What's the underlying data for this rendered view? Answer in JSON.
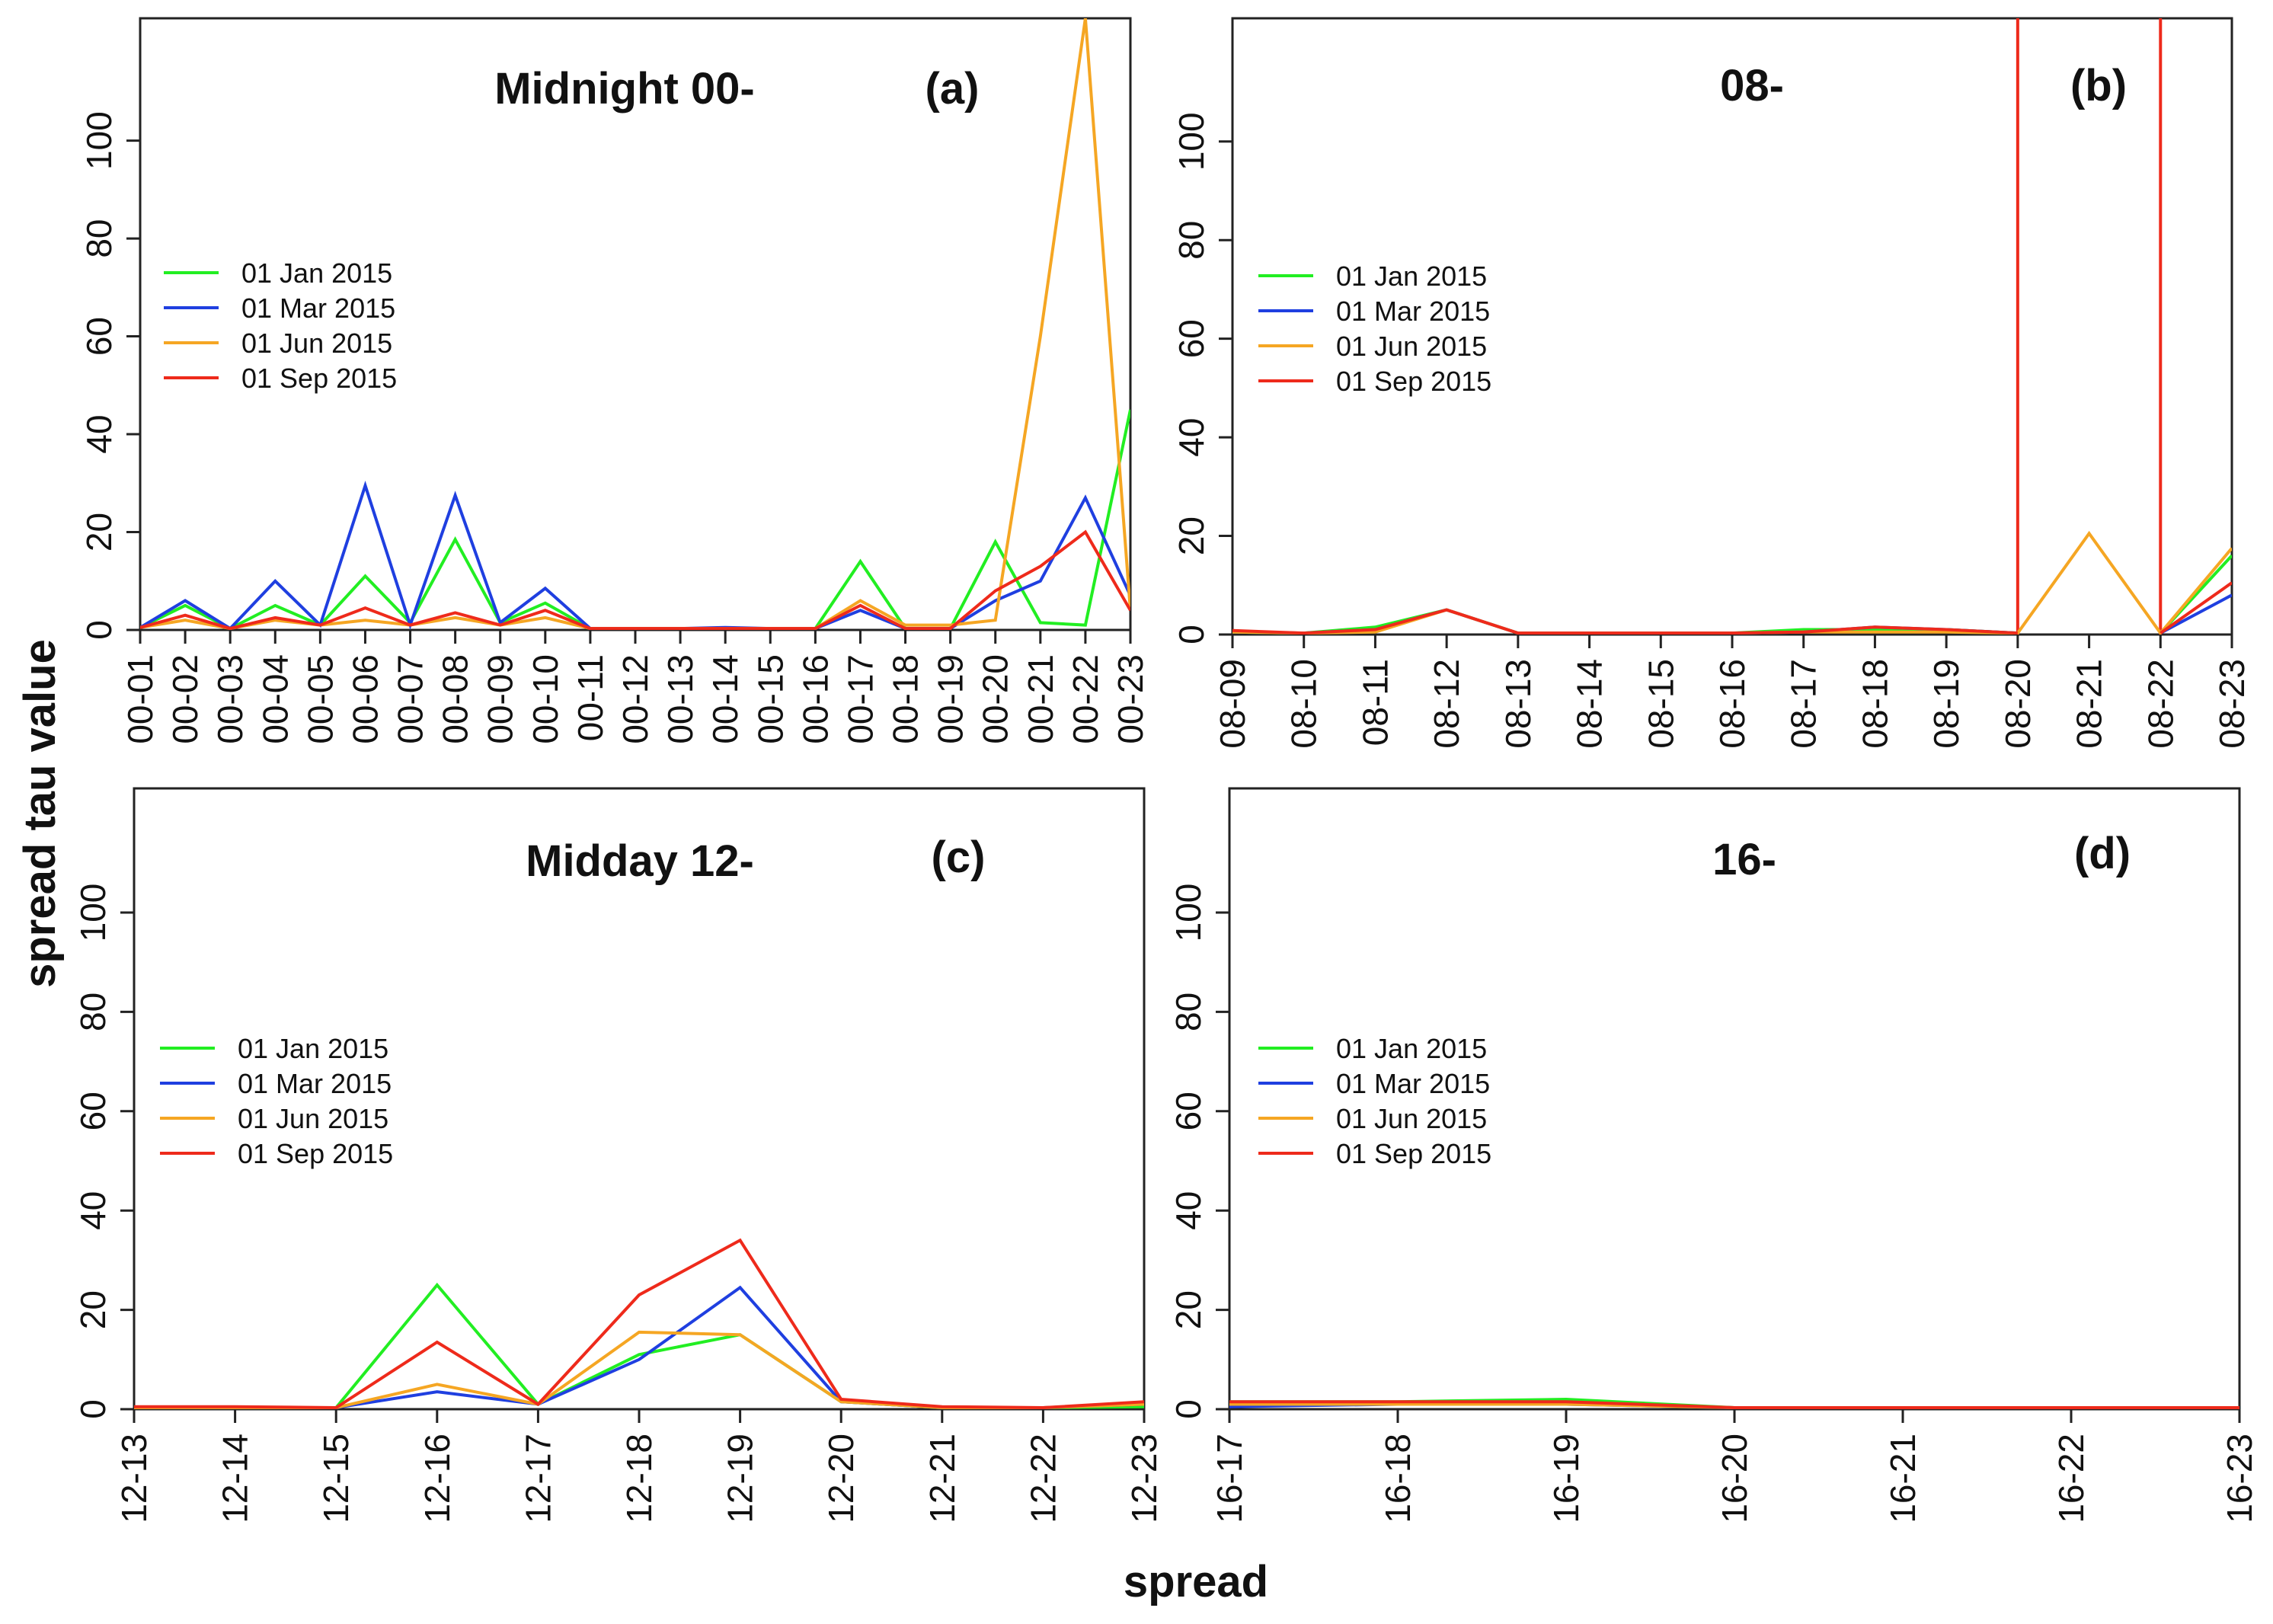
{
  "figure": {
    "ylabel": "spread tau value",
    "xlabel": "spread"
  },
  "legend": [
    {
      "label": "01 Jan 2015",
      "color": "#22ee22"
    },
    {
      "label": "01 Mar 2015",
      "color": "#1f3fe0"
    },
    {
      "label": "01 Jun 2015",
      "color": "#f5a623"
    },
    {
      "label": "01 Sep 2015",
      "color": "#ee2a1b"
    }
  ],
  "chart_data": [
    {
      "type": "line",
      "panel_label": "(a)",
      "title": "Midnight 00-",
      "categories": [
        "00-01",
        "00-02",
        "00-03",
        "00-04",
        "00-05",
        "00-06",
        "00-07",
        "00-08",
        "00-09",
        "00-10",
        "00-11",
        "00-12",
        "00-13",
        "00-14",
        "00-15",
        "00-16",
        "00-17",
        "00-18",
        "00-19",
        "00-20",
        "00-21",
        "00-22",
        "00-23"
      ],
      "ylim": [
        0,
        125
      ],
      "yticks": [
        0,
        20,
        40,
        60,
        80,
        100
      ],
      "vlines": [],
      "series": [
        {
          "name": "01 Jan 2015",
          "color": "#22ee22",
          "values": [
            0.5,
            5,
            0.3,
            5,
            1,
            11,
            1.5,
            18.5,
            1.5,
            5.5,
            0.3,
            0.3,
            0.3,
            0.3,
            0.3,
            0.3,
            14,
            0.3,
            0.3,
            18,
            1.5,
            1,
            45
          ]
        },
        {
          "name": "01 Mar 2015",
          "color": "#1f3fe0",
          "values": [
            0.5,
            6,
            0.3,
            10,
            1,
            29.5,
            1,
            27.5,
            1.5,
            8.5,
            0.3,
            0.3,
            0.3,
            0.5,
            0.3,
            0.3,
            4,
            0.3,
            0.3,
            6,
            10,
            27,
            7
          ]
        },
        {
          "name": "01 Jun 2015",
          "color": "#f5a623",
          "values": [
            0.5,
            2,
            0.3,
            2,
            1,
            2,
            1,
            2.5,
            1,
            2.5,
            0.3,
            0.3,
            0.3,
            0.3,
            0.3,
            0.3,
            6,
            1,
            1,
            2,
            60,
            125,
            4
          ]
        },
        {
          "name": "01 Sep 2015",
          "color": "#ee2a1b",
          "values": [
            0.5,
            3,
            0.3,
            2.5,
            1,
            4.5,
            1,
            3.5,
            1,
            4,
            0.3,
            0.3,
            0.3,
            0.3,
            0.3,
            0.3,
            5,
            0.3,
            0.3,
            8,
            13,
            20,
            4
          ]
        }
      ]
    },
    {
      "type": "line",
      "panel_label": "(b)",
      "title": "08-",
      "categories": [
        "08-09",
        "08-10",
        "08-11",
        "08-12",
        "08-13",
        "08-14",
        "08-15",
        "08-16",
        "08-17",
        "08-18",
        "08-19",
        "08-20",
        "08-21",
        "08-22",
        "08-23"
      ],
      "ylim": [
        0,
        125
      ],
      "yticks": [
        0,
        20,
        40,
        60,
        80,
        100
      ],
      "vlines": [
        {
          "at": "08-20",
          "color": "#ee2a1b"
        },
        {
          "at": "08-22",
          "color": "#ee2a1b"
        }
      ],
      "series": [
        {
          "name": "01 Jan 2015",
          "color": "#22ee22",
          "values": [
            0.5,
            0.3,
            1.5,
            5,
            0.3,
            0.3,
            0.3,
            0.3,
            1,
            1,
            1,
            0.3,
            null,
            0.3,
            16
          ]
        },
        {
          "name": "01 Mar 2015",
          "color": "#1f3fe0",
          "values": [
            0.5,
            0.3,
            1,
            5,
            0.3,
            0.3,
            0.3,
            0.3,
            0.5,
            1.5,
            1,
            0.3,
            null,
            0.3,
            8
          ]
        },
        {
          "name": "01 Jun 2015",
          "color": "#f5a623",
          "values": [
            0.5,
            0.3,
            0.5,
            5,
            0.3,
            0.3,
            0.3,
            0.3,
            0.5,
            0.5,
            0.5,
            0.3,
            20.5,
            0.3,
            17.5
          ]
        },
        {
          "name": "01 Sep 2015",
          "color": "#ee2a1b",
          "values": [
            0.8,
            0.3,
            1,
            5,
            0.3,
            0.3,
            0.3,
            0.3,
            0.5,
            1.5,
            1,
            0.3,
            null,
            0.3,
            10.5
          ]
        }
      ]
    },
    {
      "type": "line",
      "panel_label": "(c)",
      "title": "Midday 12-",
      "categories": [
        "12-13",
        "12-14",
        "12-15",
        "12-16",
        "12-17",
        "12-18",
        "12-19",
        "12-20",
        "12-21",
        "12-22",
        "12-23"
      ],
      "ylim": [
        0,
        125
      ],
      "yticks": [
        0,
        20,
        40,
        60,
        80,
        100
      ],
      "vlines": [],
      "series": [
        {
          "name": "01 Jan 2015",
          "color": "#22ee22",
          "values": [
            0.3,
            0.3,
            0.3,
            25,
            1,
            11,
            15,
            1.5,
            0.3,
            0.3,
            0.5
          ]
        },
        {
          "name": "01 Mar 2015",
          "color": "#1f3fe0",
          "values": [
            0.3,
            0.3,
            0.3,
            3.5,
            1,
            10,
            24.5,
            1.5,
            0.3,
            0.3,
            1
          ]
        },
        {
          "name": "01 Jun 2015",
          "color": "#f5a623",
          "values": [
            0.3,
            0.3,
            0.3,
            5,
            1,
            15.5,
            15,
            1.5,
            0.3,
            0.3,
            1
          ]
        },
        {
          "name": "01 Sep 2015",
          "color": "#ee2a1b",
          "values": [
            0.5,
            0.5,
            0.3,
            13.5,
            1,
            23,
            34,
            2,
            0.5,
            0.3,
            1.5
          ]
        }
      ]
    },
    {
      "type": "line",
      "panel_label": "(d)",
      "title": "16-",
      "categories": [
        "16-17",
        "16-18",
        "16-19",
        "16-20",
        "16-21",
        "16-22",
        "16-23"
      ],
      "ylim": [
        0,
        125
      ],
      "yticks": [
        0,
        20,
        40,
        60,
        80,
        100
      ],
      "vlines": [],
      "series": [
        {
          "name": "01 Jan 2015",
          "color": "#22ee22",
          "values": [
            1.5,
            1.5,
            2,
            0.3,
            0.3,
            0.3,
            0.3
          ]
        },
        {
          "name": "01 Mar 2015",
          "color": "#1f3fe0",
          "values": [
            0.5,
            1,
            1,
            0.3,
            0.3,
            0.3,
            0.3
          ]
        },
        {
          "name": "01 Jun 2015",
          "color": "#f5a623",
          "values": [
            1,
            1,
            1,
            0.3,
            0.3,
            0.3,
            0.3
          ]
        },
        {
          "name": "01 Sep 2015",
          "color": "#ee2a1b",
          "values": [
            1.5,
            1.5,
            1.5,
            0.3,
            0.3,
            0.3,
            0.3
          ]
        }
      ]
    }
  ]
}
